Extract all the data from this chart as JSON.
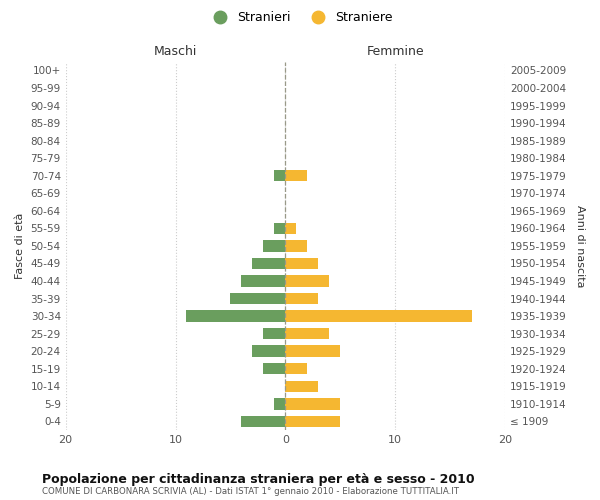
{
  "age_groups": [
    "100+",
    "95-99",
    "90-94",
    "85-89",
    "80-84",
    "75-79",
    "70-74",
    "65-69",
    "60-64",
    "55-59",
    "50-54",
    "45-49",
    "40-44",
    "35-39",
    "30-34",
    "25-29",
    "20-24",
    "15-19",
    "10-14",
    "5-9",
    "0-4"
  ],
  "birth_years": [
    "≤ 1909",
    "1910-1914",
    "1915-1919",
    "1920-1924",
    "1925-1929",
    "1930-1934",
    "1935-1939",
    "1940-1944",
    "1945-1949",
    "1950-1954",
    "1955-1959",
    "1960-1964",
    "1965-1969",
    "1970-1974",
    "1975-1979",
    "1980-1984",
    "1985-1989",
    "1990-1994",
    "1995-1999",
    "2000-2004",
    "2005-2009"
  ],
  "maschi": [
    0,
    0,
    0,
    0,
    0,
    0,
    1,
    0,
    0,
    1,
    2,
    3,
    4,
    5,
    9,
    2,
    3,
    2,
    0,
    1,
    4
  ],
  "femmine": [
    0,
    0,
    0,
    0,
    0,
    0,
    2,
    0,
    0,
    1,
    2,
    3,
    4,
    3,
    17,
    4,
    5,
    2,
    3,
    5,
    5
  ],
  "color_maschi": "#6a9e5e",
  "color_femmine": "#f5b731",
  "xlabel_left": "Maschi",
  "xlabel_right": "Femmine",
  "ylabel_left": "Fasce di età",
  "ylabel_right": "Anni di nascita",
  "xlim": 20,
  "title": "Popolazione per cittadinanza straniera per età e sesso - 2010",
  "subtitle": "COMUNE DI CARBONARA SCRIVIA (AL) - Dati ISTAT 1° gennaio 2010 - Elaborazione TUTTITALIA.IT",
  "legend_stranieri": "Stranieri",
  "legend_straniere": "Straniere",
  "bg_color": "#ffffff",
  "grid_color": "#cccccc",
  "center_line_color": "#999988"
}
